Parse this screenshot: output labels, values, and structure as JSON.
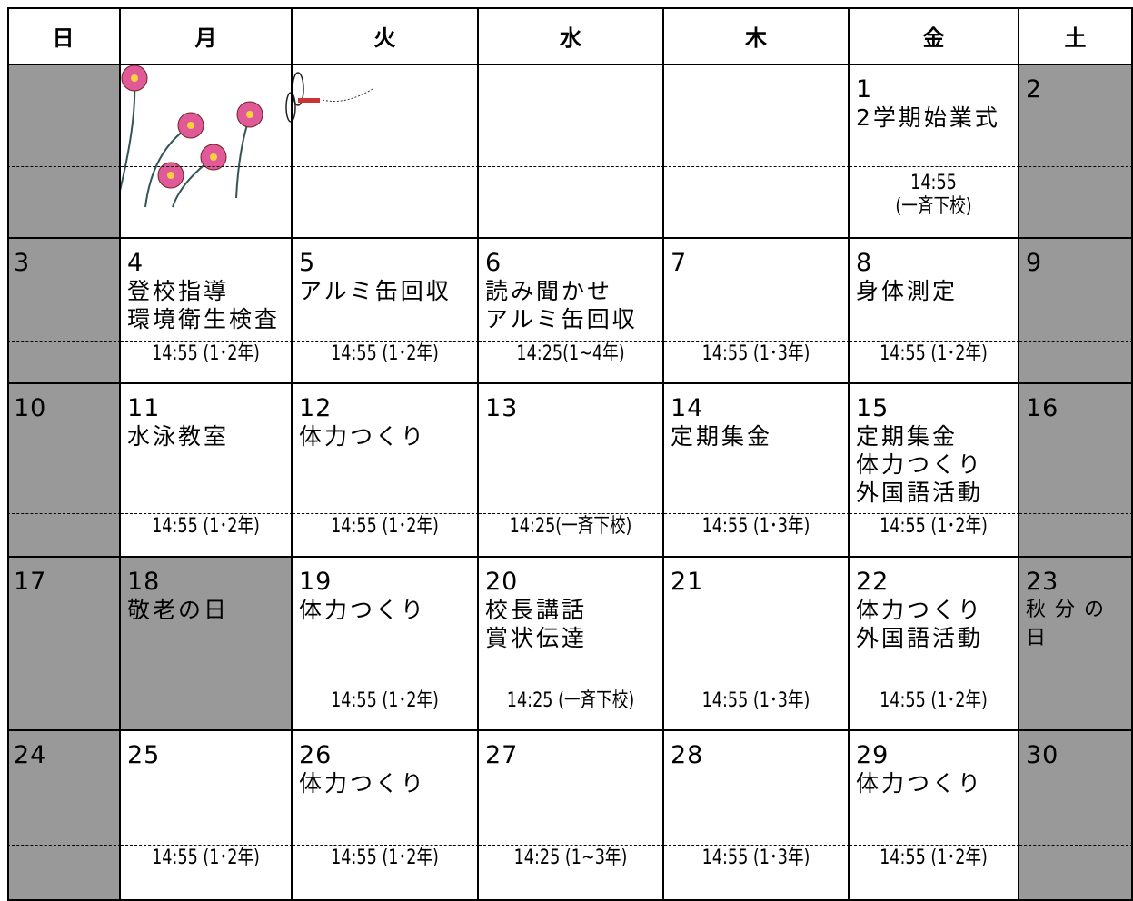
{
  "header": {
    "days": [
      "日",
      "月",
      "火",
      "水",
      "木",
      "金",
      "土"
    ]
  },
  "weeks": [
    [
      null,
      null,
      null,
      null,
      null,
      {
        "day": 1,
        "events": [
          "2学期始業式"
        ],
        "time": [
          "14:55",
          "(一斉下校)"
        ]
      },
      {
        "day": 2
      }
    ],
    [
      {
        "day": 3
      },
      {
        "day": 4,
        "events": [
          "登校指導",
          "環境衛生検査"
        ],
        "time": [
          "14:55 (1･2年)"
        ]
      },
      {
        "day": 5,
        "events": [
          "アルミ缶回収"
        ],
        "time": [
          "14:55 (1･2年)"
        ]
      },
      {
        "day": 6,
        "events": [
          "読み聞かせ",
          "アルミ缶回収"
        ],
        "time": [
          "14:25(1~4年)"
        ]
      },
      {
        "day": 7,
        "time": [
          "14:55 (1･3年)"
        ]
      },
      {
        "day": 8,
        "events": [
          "身体測定"
        ],
        "time": [
          "14:55 (1･2年)"
        ]
      },
      {
        "day": 9
      }
    ],
    [
      {
        "day": 10
      },
      {
        "day": 11,
        "events": [
          "水泳教室"
        ],
        "time": [
          "14:55 (1･2年)"
        ]
      },
      {
        "day": 12,
        "events": [
          "体力つくり"
        ],
        "time": [
          "14:55 (1･2年)"
        ]
      },
      {
        "day": 13,
        "time": [
          "14:25(一斉下校)"
        ]
      },
      {
        "day": 14,
        "events": [
          "定期集金"
        ],
        "time": [
          "14:55 (1･3年)"
        ]
      },
      {
        "day": 15,
        "events": [
          "定期集金",
          "体力つくり",
          "外国語活動"
        ],
        "time": [
          "14:55 (1･2年)"
        ]
      },
      {
        "day": 16
      }
    ],
    [
      {
        "day": 17
      },
      {
        "day": 18,
        "events": [
          "敬老の日"
        ],
        "shaded": true
      },
      {
        "day": 19,
        "events": [
          "体力つくり"
        ],
        "time": [
          "14:55 (1･2年)"
        ]
      },
      {
        "day": 20,
        "events": [
          "校長講話",
          "賞状伝達"
        ],
        "time": [
          "14:25 (一斉下校)"
        ]
      },
      {
        "day": 21,
        "time": [
          "14:55 (1･3年)"
        ]
      },
      {
        "day": 22,
        "events": [
          "体力つくり",
          "外国語活動"
        ],
        "time": [
          "14:55 (1･2年)"
        ]
      },
      {
        "day": 23,
        "events": [
          "秋分の日"
        ]
      }
    ],
    [
      {
        "day": 24
      },
      {
        "day": 25,
        "time": [
          "14:55 (1･2年)"
        ]
      },
      {
        "day": 26,
        "events": [
          "体力つくり"
        ],
        "time": [
          "14:55 (1･2年)"
        ]
      },
      {
        "day": 27,
        "time": [
          "14:25 (1~3年)"
        ]
      },
      {
        "day": 28,
        "time": [
          "14:55 (1･3年)"
        ]
      },
      {
        "day": 29,
        "events": [
          "体力つくり"
        ],
        "time": [
          "14:55 (1･2年)"
        ]
      },
      {
        "day": 30
      }
    ]
  ]
}
